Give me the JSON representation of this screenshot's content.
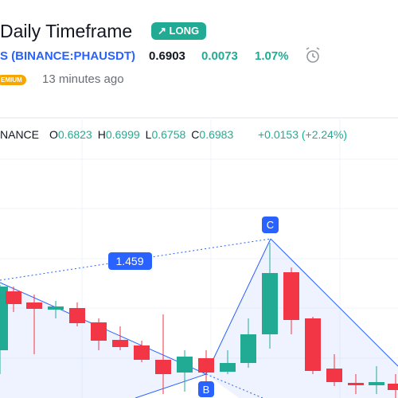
{
  "header": {
    "title": "Daily Timeframe",
    "badge": "LONG",
    "symbol": "S (BINANCE:PHAUSDT)",
    "price": "0.6903",
    "change": "0.0073",
    "change_percent": "1.07%",
    "plan": "EMIUM",
    "time": "13 minutes ago"
  },
  "chart": {
    "exchange": "NANCE",
    "ohlc": [
      {
        "label": "O",
        "value": "0.6823"
      },
      {
        "label": "H",
        "value": "0.6999"
      },
      {
        "label": "L",
        "value": "0.6758"
      },
      {
        "label": "C",
        "value": "0.6983"
      }
    ],
    "change": "+0.0153 (+2.24%)",
    "ratio_label": "1.459",
    "points": [
      "C",
      "B"
    ]
  }
}
